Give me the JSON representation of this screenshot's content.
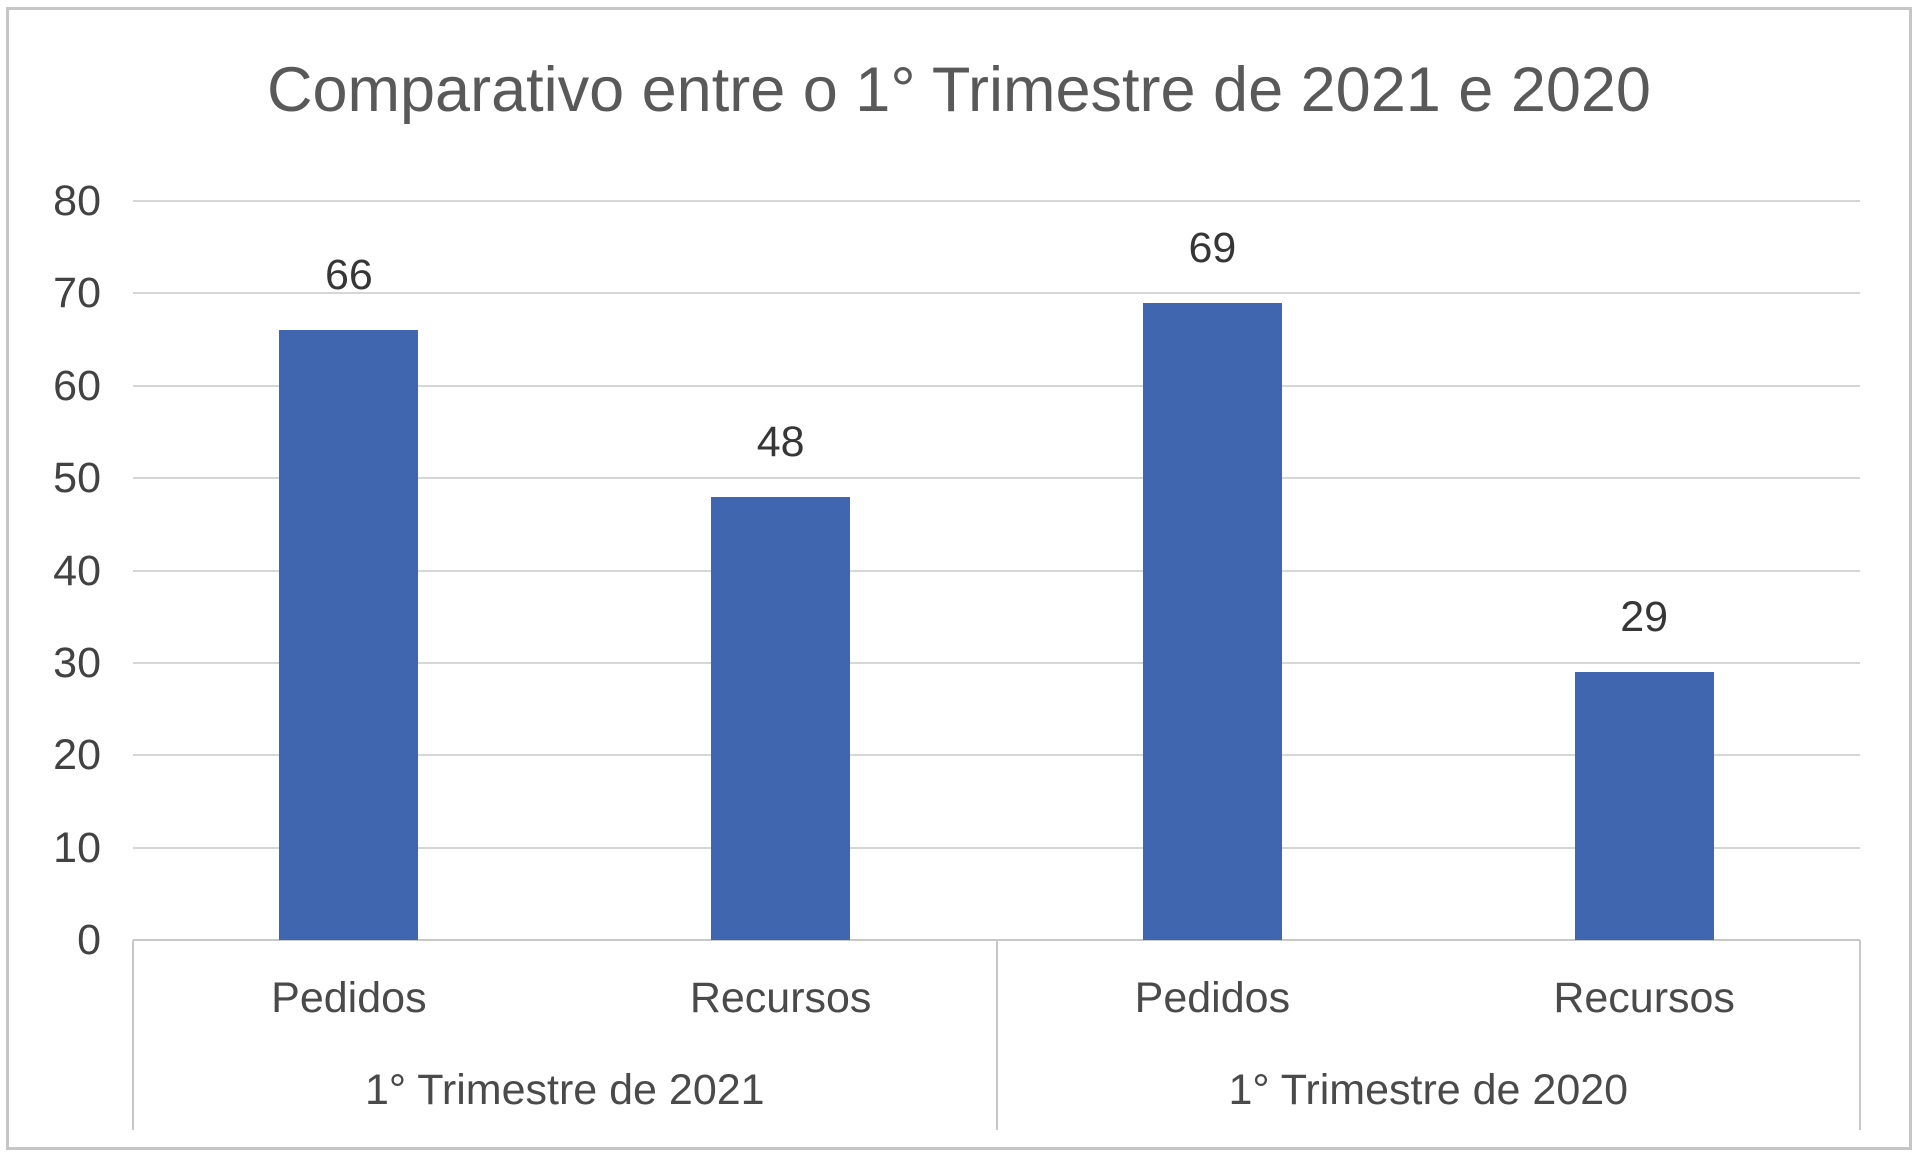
{
  "chart_data": {
    "type": "bar",
    "title": "Comparativo entre o 1° Trimestre de 2021 e 2020",
    "y_ticks": [
      0,
      10,
      20,
      30,
      40,
      50,
      60,
      70,
      80
    ],
    "ylim": [
      0,
      80
    ],
    "grid": true,
    "legend_position": "none",
    "groups": [
      {
        "label": "1° Trimestre de 2021",
        "categories": [
          "Pedidos",
          "Recursos"
        ],
        "values": [
          66,
          48
        ]
      },
      {
        "label": "1° Trimestre de 2020",
        "categories": [
          "Pedidos",
          "Recursos"
        ],
        "values": [
          69,
          29
        ]
      }
    ],
    "data_labels": [
      66,
      48,
      69,
      29
    ],
    "colors": {
      "bar": "#4066b0",
      "gridline": "#d6d6d6",
      "axis": "#c8c8c8",
      "title_text": "#595959",
      "tick_text": "#424242",
      "category_text": "#4a4a4a",
      "value_text": "#363636",
      "frame_border": "#c6c6c6"
    }
  }
}
